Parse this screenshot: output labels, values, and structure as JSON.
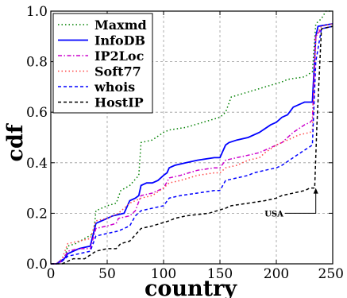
{
  "chart_data": {
    "type": "line",
    "xlabel": "country",
    "ylabel": "cdf",
    "xlim": [
      0,
      250
    ],
    "ylim": [
      0,
      1.0
    ],
    "x_ticks": [
      0,
      50,
      100,
      150,
      200,
      250
    ],
    "y_ticks": [
      0.0,
      0.2,
      0.4,
      0.6,
      0.8,
      1.0
    ],
    "x_tick_labels": [
      "0",
      "50",
      "100",
      "150",
      "200",
      "250"
    ],
    "y_tick_labels": [
      "0.0",
      "0.2",
      "0.4",
      "0.6",
      "0.8",
      "1.0"
    ],
    "grid": true,
    "legend_position": "top-left",
    "annotation": {
      "text": "USA",
      "x": 235,
      "y": 0.3
    },
    "series": [
      {
        "name": "Maxmd",
        "color": "#008000",
        "dash": "dotted",
        "points": [
          [
            0,
            0
          ],
          [
            5,
            0
          ],
          [
            8,
            0.01
          ],
          [
            12,
            0.02
          ],
          [
            15,
            0.07
          ],
          [
            22,
            0.08
          ],
          [
            30,
            0.1
          ],
          [
            38,
            0.12
          ],
          [
            40,
            0.21
          ],
          [
            50,
            0.23
          ],
          [
            58,
            0.24
          ],
          [
            62,
            0.29
          ],
          [
            70,
            0.31
          ],
          [
            78,
            0.35
          ],
          [
            80,
            0.48
          ],
          [
            90,
            0.49
          ],
          [
            100,
            0.52
          ],
          [
            105,
            0.53
          ],
          [
            120,
            0.54
          ],
          [
            135,
            0.56
          ],
          [
            150,
            0.58
          ],
          [
            155,
            0.6
          ],
          [
            160,
            0.66
          ],
          [
            175,
            0.68
          ],
          [
            190,
            0.7
          ],
          [
            205,
            0.72
          ],
          [
            210,
            0.73
          ],
          [
            225,
            0.74
          ],
          [
            232,
            0.76
          ],
          [
            235,
            0.95
          ],
          [
            240,
            0.97
          ],
          [
            244,
            1.0
          ],
          [
            250,
            1.0
          ]
        ]
      },
      {
        "name": "InfoDB",
        "color": "#0000ff",
        "dash": "solid",
        "points": [
          [
            0,
            0
          ],
          [
            5,
            0
          ],
          [
            8,
            0.01
          ],
          [
            12,
            0.02
          ],
          [
            15,
            0.04
          ],
          [
            20,
            0.05
          ],
          [
            25,
            0.06
          ],
          [
            30,
            0.065
          ],
          [
            35,
            0.07
          ],
          [
            40,
            0.16
          ],
          [
            45,
            0.17
          ],
          [
            50,
            0.18
          ],
          [
            55,
            0.19
          ],
          [
            65,
            0.2
          ],
          [
            70,
            0.25
          ],
          [
            75,
            0.26
          ],
          [
            78,
            0.27
          ],
          [
            80,
            0.31
          ],
          [
            85,
            0.32
          ],
          [
            90,
            0.32
          ],
          [
            95,
            0.33
          ],
          [
            100,
            0.35
          ],
          [
            103,
            0.36
          ],
          [
            105,
            0.38
          ],
          [
            110,
            0.39
          ],
          [
            120,
            0.4
          ],
          [
            130,
            0.41
          ],
          [
            145,
            0.42
          ],
          [
            150,
            0.42
          ],
          [
            155,
            0.47
          ],
          [
            158,
            0.48
          ],
          [
            165,
            0.49
          ],
          [
            175,
            0.5
          ],
          [
            185,
            0.52
          ],
          [
            195,
            0.55
          ],
          [
            200,
            0.56
          ],
          [
            205,
            0.58
          ],
          [
            210,
            0.59
          ],
          [
            215,
            0.62
          ],
          [
            220,
            0.63
          ],
          [
            225,
            0.64
          ],
          [
            232,
            0.64
          ],
          [
            235,
            0.9
          ],
          [
            237,
            0.94
          ],
          [
            250,
            0.95
          ]
        ]
      },
      {
        "name": "IP2Loc",
        "color": "#cc00cc",
        "dash": "dashdot",
        "points": [
          [
            0,
            0
          ],
          [
            5,
            0
          ],
          [
            10,
            0.01
          ],
          [
            15,
            0.05
          ],
          [
            25,
            0.06
          ],
          [
            35,
            0.06
          ],
          [
            40,
            0.14
          ],
          [
            50,
            0.15
          ],
          [
            58,
            0.16
          ],
          [
            60,
            0.18
          ],
          [
            70,
            0.19
          ],
          [
            75,
            0.21
          ],
          [
            80,
            0.27
          ],
          [
            90,
            0.28
          ],
          [
            100,
            0.3
          ],
          [
            105,
            0.34
          ],
          [
            115,
            0.35
          ],
          [
            130,
            0.37
          ],
          [
            145,
            0.38
          ],
          [
            150,
            0.38
          ],
          [
            155,
            0.41
          ],
          [
            165,
            0.42
          ],
          [
            175,
            0.43
          ],
          [
            185,
            0.44
          ],
          [
            195,
            0.46
          ],
          [
            205,
            0.48
          ],
          [
            215,
            0.52
          ],
          [
            225,
            0.55
          ],
          [
            230,
            0.56
          ],
          [
            232,
            0.57
          ],
          [
            235,
            0.9
          ],
          [
            240,
            0.93
          ],
          [
            250,
            0.94
          ]
        ]
      },
      {
        "name": "Soft77",
        "color": "#ff4444",
        "dash": "dotted",
        "points": [
          [
            0,
            0
          ],
          [
            5,
            0
          ],
          [
            10,
            0.02
          ],
          [
            15,
            0.08
          ],
          [
            25,
            0.09
          ],
          [
            35,
            0.1
          ],
          [
            40,
            0.17
          ],
          [
            50,
            0.18
          ],
          [
            60,
            0.2
          ],
          [
            70,
            0.24
          ],
          [
            80,
            0.26
          ],
          [
            90,
            0.27
          ],
          [
            100,
            0.3
          ],
          [
            105,
            0.32
          ],
          [
            115,
            0.33
          ],
          [
            130,
            0.35
          ],
          [
            145,
            0.36
          ],
          [
            150,
            0.36
          ],
          [
            155,
            0.38
          ],
          [
            165,
            0.39
          ],
          [
            175,
            0.41
          ],
          [
            185,
            0.42
          ],
          [
            190,
            0.44
          ],
          [
            200,
            0.47
          ],
          [
            210,
            0.49
          ],
          [
            220,
            0.51
          ],
          [
            230,
            0.52
          ],
          [
            232,
            0.53
          ],
          [
            235,
            0.9
          ],
          [
            240,
            0.94
          ],
          [
            250,
            0.95
          ]
        ]
      },
      {
        "name": "whois",
        "color": "#0000ff",
        "dash": "dashed",
        "points": [
          [
            0,
            0
          ],
          [
            5,
            0
          ],
          [
            10,
            0.01
          ],
          [
            15,
            0.03
          ],
          [
            25,
            0.04
          ],
          [
            35,
            0.05
          ],
          [
            40,
            0.11
          ],
          [
            50,
            0.12
          ],
          [
            60,
            0.13
          ],
          [
            70,
            0.15
          ],
          [
            75,
            0.19
          ],
          [
            80,
            0.21
          ],
          [
            90,
            0.22
          ],
          [
            100,
            0.23
          ],
          [
            105,
            0.26
          ],
          [
            115,
            0.27
          ],
          [
            130,
            0.28
          ],
          [
            145,
            0.29
          ],
          [
            150,
            0.29
          ],
          [
            155,
            0.33
          ],
          [
            165,
            0.34
          ],
          [
            175,
            0.35
          ],
          [
            180,
            0.36
          ],
          [
            190,
            0.37
          ],
          [
            200,
            0.38
          ],
          [
            205,
            0.39
          ],
          [
            215,
            0.42
          ],
          [
            225,
            0.45
          ],
          [
            232,
            0.47
          ],
          [
            235,
            0.8
          ],
          [
            240,
            0.93
          ],
          [
            250,
            0.94
          ]
        ]
      },
      {
        "name": "HostIP",
        "color": "#000000",
        "dash": "dashed",
        "points": [
          [
            0,
            0
          ],
          [
            10,
            0
          ],
          [
            15,
            0.01
          ],
          [
            20,
            0.02
          ],
          [
            30,
            0.02
          ],
          [
            40,
            0.05
          ],
          [
            50,
            0.06
          ],
          [
            58,
            0.06
          ],
          [
            62,
            0.08
          ],
          [
            70,
            0.09
          ],
          [
            80,
            0.14
          ],
          [
            90,
            0.15
          ],
          [
            105,
            0.17
          ],
          [
            110,
            0.18
          ],
          [
            120,
            0.19
          ],
          [
            140,
            0.2
          ],
          [
            155,
            0.22
          ],
          [
            160,
            0.23
          ],
          [
            175,
            0.24
          ],
          [
            190,
            0.25
          ],
          [
            200,
            0.26
          ],
          [
            205,
            0.27
          ],
          [
            215,
            0.28
          ],
          [
            225,
            0.29
          ],
          [
            230,
            0.3
          ],
          [
            234,
            0.3
          ],
          [
            236,
            0.55
          ],
          [
            240,
            0.93
          ],
          [
            250,
            0.94
          ]
        ]
      }
    ]
  }
}
